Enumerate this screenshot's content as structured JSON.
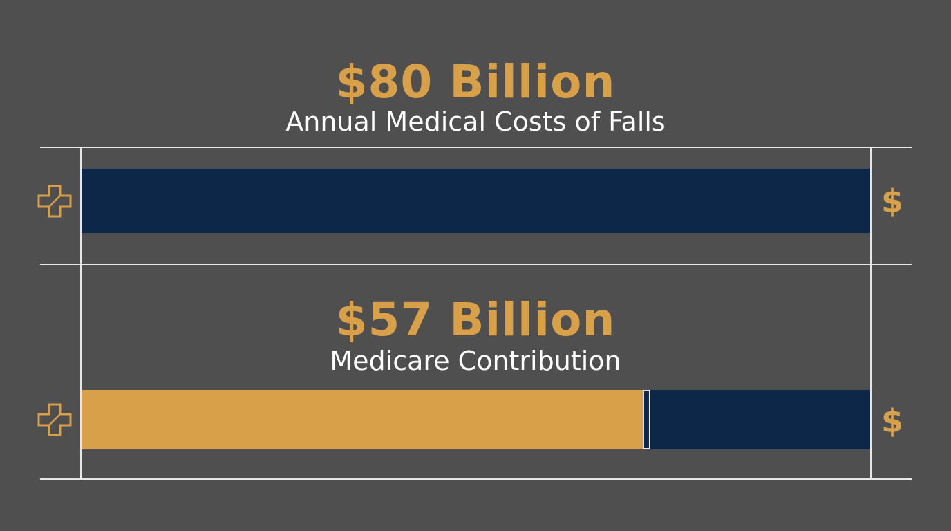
{
  "colors": {
    "background": "#4f4f4f",
    "accent_gold": "#d9a04a",
    "bar_navy": "#0d2748",
    "rule": "#e6e6e6",
    "caption": "#ffffff"
  },
  "panels": [
    {
      "amount": "$80 Billion",
      "caption": "Annual Medical Costs of Falls",
      "left_icon": "medical-cross-icon",
      "right_icon": "dollar-icon",
      "right_symbol": "$"
    },
    {
      "amount": "$57 Billion",
      "caption": "Medicare Contribution",
      "left_icon": "medical-cross-icon",
      "right_icon": "dollar-icon",
      "right_symbol": "$"
    }
  ],
  "chart_data": [
    {
      "type": "bar",
      "orientation": "horizontal",
      "categories": [
        "Annual Medical Costs of Falls"
      ],
      "values": [
        80
      ],
      "unit": "Billion USD",
      "xlim": [
        0,
        80
      ],
      "grid": false,
      "legend": "none"
    },
    {
      "type": "bar",
      "orientation": "horizontal",
      "stacked": true,
      "categories": [
        "Medicare Contribution"
      ],
      "values": [
        57
      ],
      "total": 80,
      "unit": "Billion USD",
      "xlim": [
        0,
        80
      ],
      "grid": false,
      "legend": "none"
    }
  ]
}
